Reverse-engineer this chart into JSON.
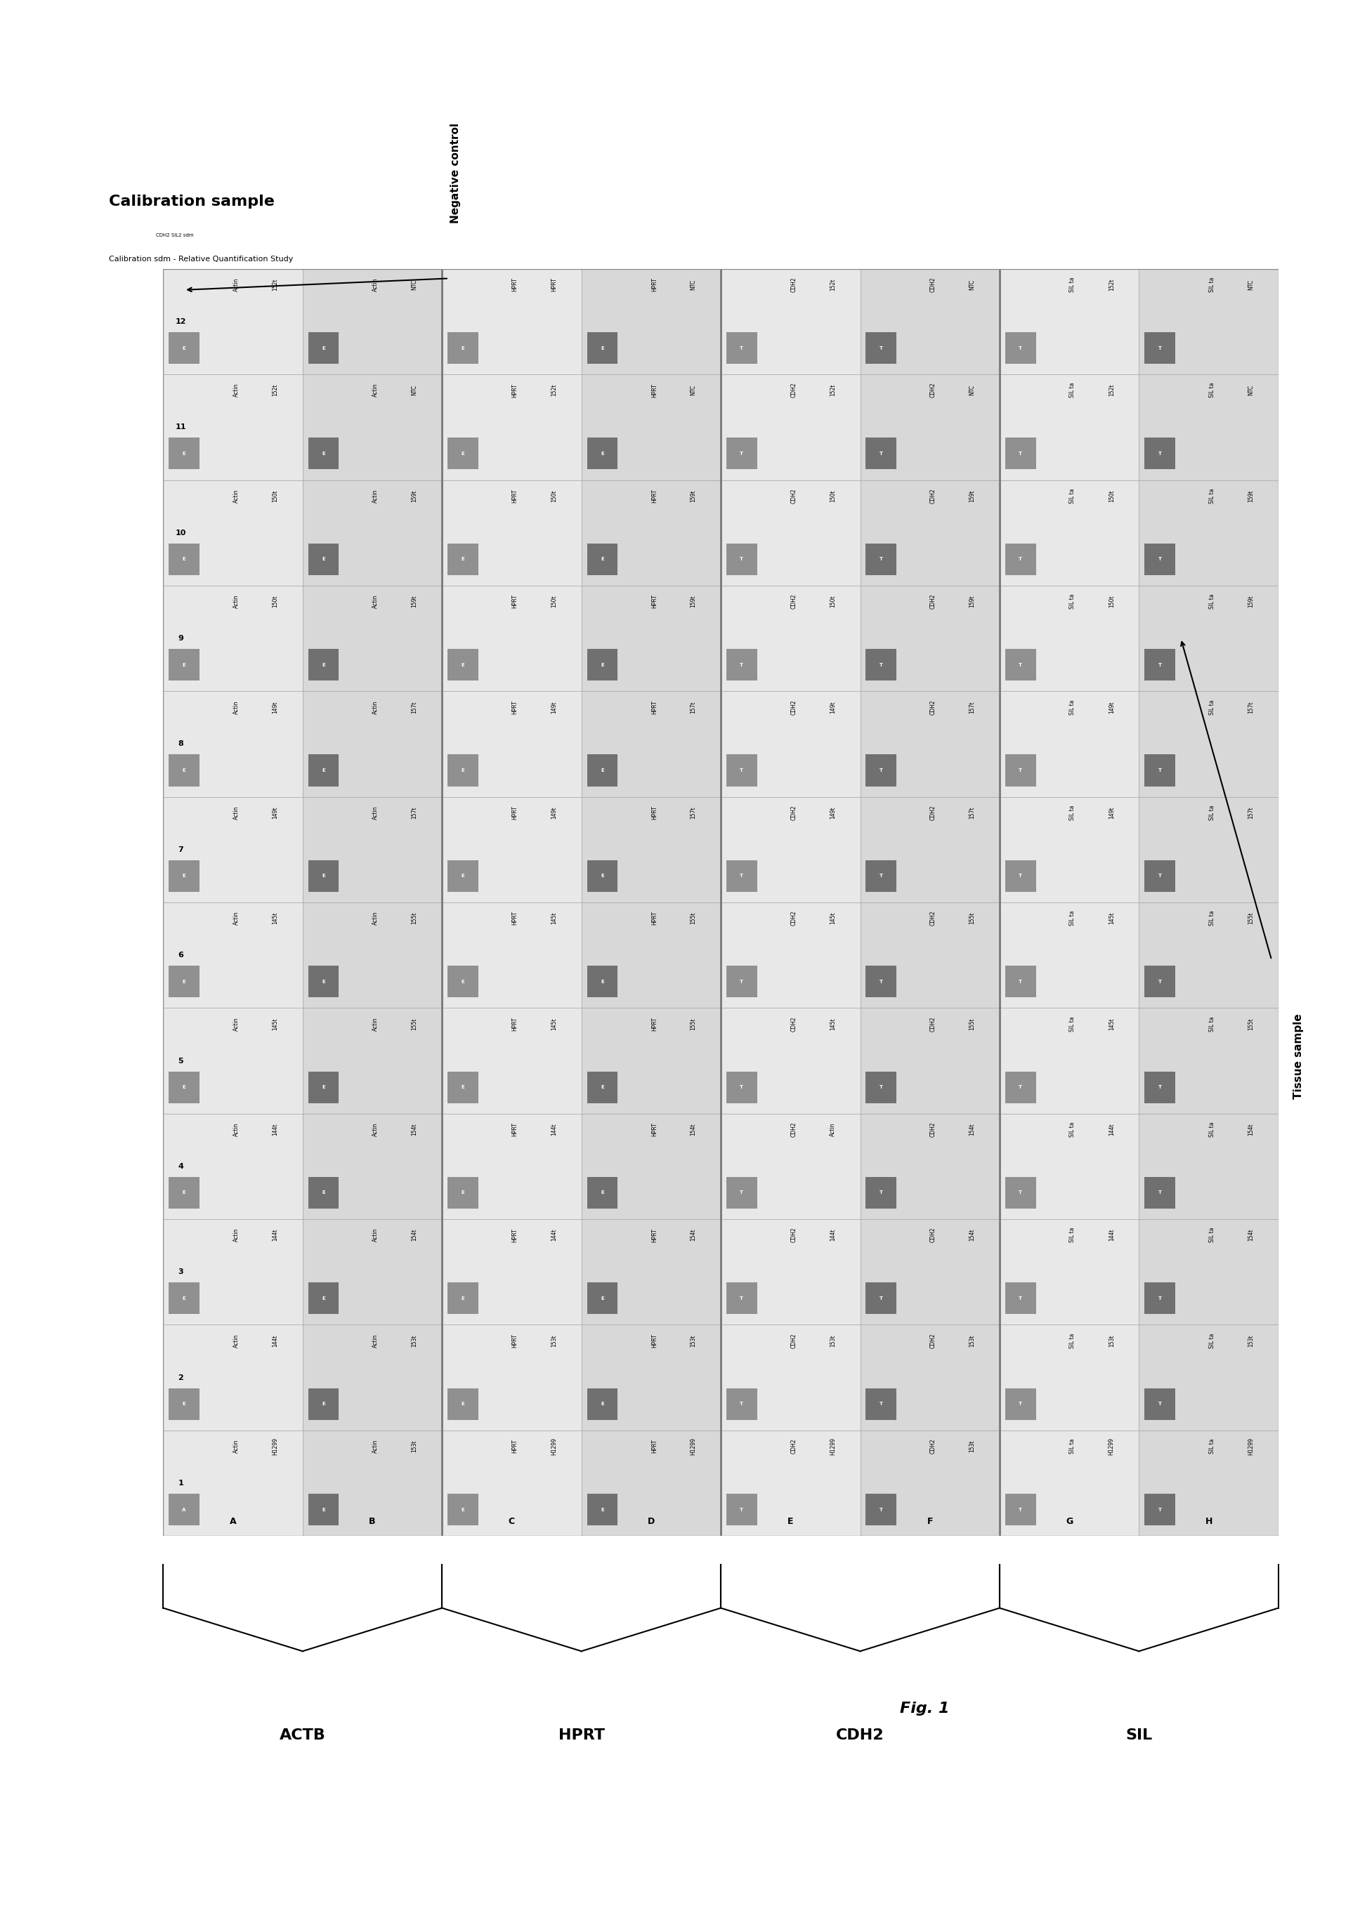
{
  "title": "Fig. 1",
  "plate_rows": [
    "A",
    "B",
    "C",
    "D",
    "E",
    "F",
    "G",
    "H"
  ],
  "plate_cols": [
    "1",
    "2",
    "3",
    "4",
    "5",
    "6",
    "7",
    "8",
    "9",
    "10",
    "11",
    "12"
  ],
  "left_label": "Calibration sample",
  "left_sublabel": "Calibration sdm - Relative Quantification Study",
  "neg_control_label": "Negative control",
  "tissue_sample_label": "Tissue sample",
  "corner_label": "CDH2 SIL2 sdm",
  "group_labels_below": [
    "ACTB",
    "HPRT",
    "CDH2",
    "SIL"
  ],
  "group_col_ranges": [
    [
      0,
      1
    ],
    [
      2,
      3
    ],
    [
      4,
      5
    ],
    [
      6,
      7
    ]
  ],
  "cell_data": {
    "A": {
      "1": {
        "letter": "A",
        "gene": "Actin",
        "sample": "H1299",
        "sq_dark": false
      },
      "2": {
        "letter": "E",
        "gene": "Actin",
        "sample": "144t",
        "sq_dark": false
      },
      "3": {
        "letter": "E",
        "gene": "Actin",
        "sample": "144t",
        "sq_dark": false
      },
      "4": {
        "letter": "E",
        "gene": "Actin",
        "sample": "144t",
        "sq_dark": false
      },
      "5": {
        "letter": "E",
        "gene": "Actin",
        "sample": "145t",
        "sq_dark": false
      },
      "6": {
        "letter": "E",
        "gene": "Actin",
        "sample": "145t",
        "sq_dark": false
      },
      "7": {
        "letter": "E",
        "gene": "Actin",
        "sample": "149t",
        "sq_dark": false
      },
      "8": {
        "letter": "E",
        "gene": "Actin",
        "sample": "149t",
        "sq_dark": false
      },
      "9": {
        "letter": "E",
        "gene": "Actin",
        "sample": "150t",
        "sq_dark": false
      },
      "10": {
        "letter": "E",
        "gene": "Actin",
        "sample": "150t",
        "sq_dark": false
      },
      "11": {
        "letter": "E",
        "gene": "Actin",
        "sample": "152t",
        "sq_dark": false
      },
      "12": {
        "letter": "E",
        "gene": "Actin",
        "sample": "152t",
        "sq_dark": false
      }
    },
    "B": {
      "1": {
        "letter": "E",
        "gene": "Actin",
        "sample": "153t",
        "sq_dark": true
      },
      "2": {
        "letter": "E",
        "gene": "Actin",
        "sample": "153t",
        "sq_dark": true
      },
      "3": {
        "letter": "E",
        "gene": "Actin",
        "sample": "154t",
        "sq_dark": true
      },
      "4": {
        "letter": "E",
        "gene": "Actin",
        "sample": "154t",
        "sq_dark": true
      },
      "5": {
        "letter": "E",
        "gene": "Actin",
        "sample": "155t",
        "sq_dark": true
      },
      "6": {
        "letter": "E",
        "gene": "Actin",
        "sample": "155t",
        "sq_dark": true
      },
      "7": {
        "letter": "E",
        "gene": "Actin",
        "sample": "157t",
        "sq_dark": true
      },
      "8": {
        "letter": "E",
        "gene": "Actin",
        "sample": "157t",
        "sq_dark": true
      },
      "9": {
        "letter": "E",
        "gene": "Actin",
        "sample": "159t",
        "sq_dark": true
      },
      "10": {
        "letter": "E",
        "gene": "Actin",
        "sample": "159t",
        "sq_dark": true
      },
      "11": {
        "letter": "E",
        "gene": "Actin",
        "sample": "NTC",
        "sq_dark": true
      },
      "12": {
        "letter": "E",
        "gene": "Actin",
        "sample": "NTC",
        "sq_dark": true
      }
    },
    "C": {
      "1": {
        "letter": "E",
        "gene": "HPRT",
        "sample": "H1299",
        "sq_dark": false
      },
      "2": {
        "letter": "E",
        "gene": "HPRT",
        "sample": "153t",
        "sq_dark": false
      },
      "3": {
        "letter": "E",
        "gene": "HPRT",
        "sample": "144t",
        "sq_dark": false
      },
      "4": {
        "letter": "E",
        "gene": "HPRT",
        "sample": "144t",
        "sq_dark": false
      },
      "5": {
        "letter": "E",
        "gene": "HPRT",
        "sample": "145t",
        "sq_dark": false
      },
      "6": {
        "letter": "E",
        "gene": "HPRT",
        "sample": "145t",
        "sq_dark": false
      },
      "7": {
        "letter": "E",
        "gene": "HPRT",
        "sample": "149t",
        "sq_dark": false
      },
      "8": {
        "letter": "E",
        "gene": "HPRT",
        "sample": "149t",
        "sq_dark": false
      },
      "9": {
        "letter": "E",
        "gene": "HPRT",
        "sample": "150t",
        "sq_dark": false
      },
      "10": {
        "letter": "E",
        "gene": "HPRT",
        "sample": "150t",
        "sq_dark": false
      },
      "11": {
        "letter": "E",
        "gene": "HPRT",
        "sample": "152t",
        "sq_dark": false
      },
      "12": {
        "letter": "E",
        "gene": "HPRT",
        "sample": "HPRT",
        "sq_dark": false
      }
    },
    "D": {
      "1": {
        "letter": "E",
        "gene": "HPRT",
        "sample": "H1299",
        "sq_dark": true
      },
      "2": {
        "letter": "E",
        "gene": "HPRT",
        "sample": "153t",
        "sq_dark": true
      },
      "3": {
        "letter": "E",
        "gene": "HPRT",
        "sample": "154t",
        "sq_dark": true
      },
      "4": {
        "letter": "E",
        "gene": "HPRT",
        "sample": "154t",
        "sq_dark": true
      },
      "5": {
        "letter": "E",
        "gene": "HPRT",
        "sample": "155t",
        "sq_dark": true
      },
      "6": {
        "letter": "E",
        "gene": "HPRT",
        "sample": "155t",
        "sq_dark": true
      },
      "7": {
        "letter": "E",
        "gene": "HPRT",
        "sample": "157t",
        "sq_dark": true
      },
      "8": {
        "letter": "E",
        "gene": "HPRT",
        "sample": "157t",
        "sq_dark": true
      },
      "9": {
        "letter": "E",
        "gene": "HPRT",
        "sample": "159t",
        "sq_dark": true
      },
      "10": {
        "letter": "E",
        "gene": "HPRT",
        "sample": "159t",
        "sq_dark": true
      },
      "11": {
        "letter": "E",
        "gene": "HPRT",
        "sample": "NTC",
        "sq_dark": true
      },
      "12": {
        "letter": "E",
        "gene": "HPRT",
        "sample": "NTC",
        "sq_dark": true
      }
    },
    "E": {
      "1": {
        "letter": "T",
        "gene": "CDH2",
        "sample": "H1299",
        "sq_dark": false
      },
      "2": {
        "letter": "T",
        "gene": "CDH2",
        "sample": "153t",
        "sq_dark": false
      },
      "3": {
        "letter": "T",
        "gene": "CDH2",
        "sample": "144t",
        "sq_dark": false
      },
      "4": {
        "letter": "T",
        "gene": "CDH2",
        "sample": "Actin",
        "sq_dark": false
      },
      "5": {
        "letter": "T",
        "gene": "CDH2",
        "sample": "145t",
        "sq_dark": false
      },
      "6": {
        "letter": "T",
        "gene": "CDH2",
        "sample": "145t",
        "sq_dark": false
      },
      "7": {
        "letter": "T",
        "gene": "CDH2",
        "sample": "149t",
        "sq_dark": false
      },
      "8": {
        "letter": "T",
        "gene": "CDH2",
        "sample": "149t",
        "sq_dark": false
      },
      "9": {
        "letter": "T",
        "gene": "CDH2",
        "sample": "150t",
        "sq_dark": false
      },
      "10": {
        "letter": "T",
        "gene": "CDH2",
        "sample": "150t",
        "sq_dark": false
      },
      "11": {
        "letter": "T",
        "gene": "CDH2",
        "sample": "152t",
        "sq_dark": false
      },
      "12": {
        "letter": "T",
        "gene": "CDH2",
        "sample": "152t",
        "sq_dark": false
      }
    },
    "F": {
      "1": {
        "letter": "T",
        "gene": "CDH2",
        "sample": "153t",
        "sq_dark": true
      },
      "2": {
        "letter": "T",
        "gene": "CDH2",
        "sample": "153t",
        "sq_dark": true
      },
      "3": {
        "letter": "T",
        "gene": "CDH2",
        "sample": "154t",
        "sq_dark": true
      },
      "4": {
        "letter": "T",
        "gene": "CDH2",
        "sample": "154t",
        "sq_dark": true
      },
      "5": {
        "letter": "T",
        "gene": "CDH2",
        "sample": "155t",
        "sq_dark": true
      },
      "6": {
        "letter": "T",
        "gene": "CDH2",
        "sample": "155t",
        "sq_dark": true
      },
      "7": {
        "letter": "T",
        "gene": "CDH2",
        "sample": "157t",
        "sq_dark": true
      },
      "8": {
        "letter": "T",
        "gene": "CDH2",
        "sample": "157t",
        "sq_dark": true
      },
      "9": {
        "letter": "T",
        "gene": "CDH2",
        "sample": "159t",
        "sq_dark": true
      },
      "10": {
        "letter": "T",
        "gene": "CDH2",
        "sample": "159t",
        "sq_dark": true
      },
      "11": {
        "letter": "T",
        "gene": "CDH2",
        "sample": "NTC",
        "sq_dark": true
      },
      "12": {
        "letter": "T",
        "gene": "CDH2",
        "sample": "NTC",
        "sq_dark": true
      }
    },
    "G": {
      "1": {
        "letter": "T",
        "gene": "SIL ta",
        "sample": "H1299",
        "sq_dark": false
      },
      "2": {
        "letter": "T",
        "gene": "SIL ta",
        "sample": "153t",
        "sq_dark": false
      },
      "3": {
        "letter": "T",
        "gene": "SIL ta",
        "sample": "144t",
        "sq_dark": false
      },
      "4": {
        "letter": "T",
        "gene": "SIL ta",
        "sample": "144t",
        "sq_dark": false
      },
      "5": {
        "letter": "T",
        "gene": "SIL ta",
        "sample": "145t",
        "sq_dark": false
      },
      "6": {
        "letter": "T",
        "gene": "SIL ta",
        "sample": "145t",
        "sq_dark": false
      },
      "7": {
        "letter": "T",
        "gene": "SIL ta",
        "sample": "149t",
        "sq_dark": false
      },
      "8": {
        "letter": "T",
        "gene": "SIL ta",
        "sample": "149t",
        "sq_dark": false
      },
      "9": {
        "letter": "T",
        "gene": "SIL ta",
        "sample": "150t",
        "sq_dark": false
      },
      "10": {
        "letter": "T",
        "gene": "SIL ta",
        "sample": "150t",
        "sq_dark": false
      },
      "11": {
        "letter": "T",
        "gene": "SIL ta",
        "sample": "152t",
        "sq_dark": false
      },
      "12": {
        "letter": "T",
        "gene": "SIL ta",
        "sample": "152t",
        "sq_dark": false
      }
    },
    "H": {
      "1": {
        "letter": "T",
        "gene": "SIL ta",
        "sample": "H1299",
        "sq_dark": true
      },
      "2": {
        "letter": "T",
        "gene": "SIL ta",
        "sample": "153t",
        "sq_dark": true
      },
      "3": {
        "letter": "T",
        "gene": "SIL ta",
        "sample": "154t",
        "sq_dark": true
      },
      "4": {
        "letter": "T",
        "gene": "SIL ta",
        "sample": "154t",
        "sq_dark": true
      },
      "5": {
        "letter": "T",
        "gene": "SIL ta",
        "sample": "155t",
        "sq_dark": true
      },
      "6": {
        "letter": "T",
        "gene": "SIL ta",
        "sample": "155t",
        "sq_dark": true
      },
      "7": {
        "letter": "T",
        "gene": "SIL ta",
        "sample": "157t",
        "sq_dark": true
      },
      "8": {
        "letter": "T",
        "gene": "SIL ta",
        "sample": "157t",
        "sq_dark": true
      },
      "9": {
        "letter": "T",
        "gene": "SIL ta",
        "sample": "159t",
        "sq_dark": true
      },
      "10": {
        "letter": "T",
        "gene": "SIL ta",
        "sample": "159t",
        "sq_dark": true
      },
      "11": {
        "letter": "T",
        "gene": "SIL ta",
        "sample": "NTC",
        "sq_dark": true
      },
      "12": {
        "letter": "T",
        "gene": "SIL ta",
        "sample": "NTC",
        "sq_dark": true
      }
    }
  }
}
